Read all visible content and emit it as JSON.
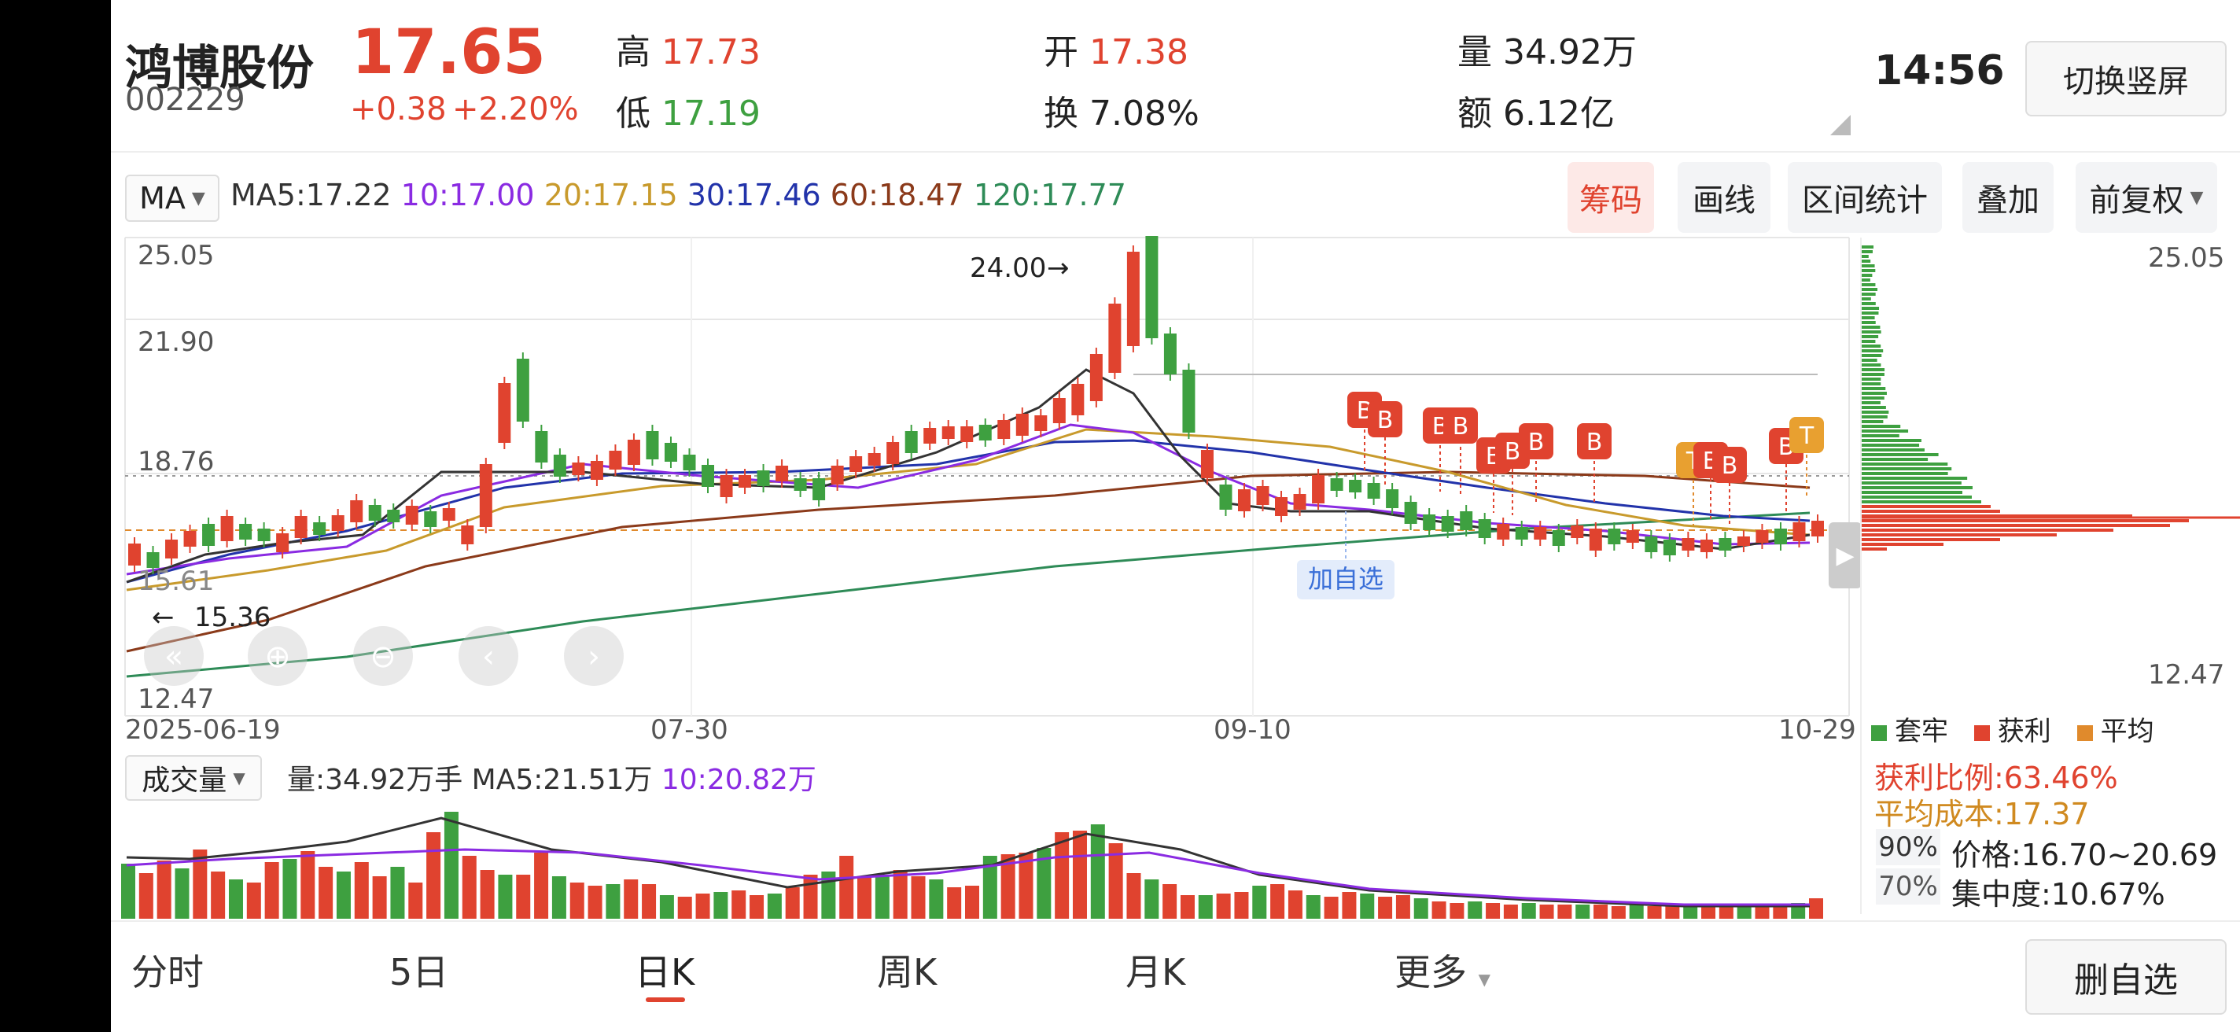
{
  "stock": {
    "name": "鸿博股份",
    "code": "002229",
    "price": "17.65",
    "change": "+0.38",
    "change_pct": "+2.20%",
    "high_label": "高",
    "high": "17.73",
    "low_label": "低",
    "low": "17.19",
    "open_label": "开",
    "open": "17.38",
    "turnover_label": "换",
    "turnover": "7.08%",
    "volume_label": "量",
    "volume": "34.92万",
    "amount_label": "额",
    "amount": "6.12亿",
    "time": "14:56"
  },
  "header": {
    "switch_button": "切换竖屏"
  },
  "ma_bar": {
    "selector": "MA",
    "ma5": "MA5:17.22",
    "ma10": "10:17.00",
    "ma20": "20:17.15",
    "ma30": "30:17.46",
    "ma60": "60:18.47",
    "ma120": "120:17.77"
  },
  "tools": {
    "chips": "筹码",
    "draw": "画线",
    "range_stats": "区间统计",
    "overlay": "叠加",
    "adjust": "前复权"
  },
  "price_axis": {
    "top": "25.05",
    "mid1": "21.90",
    "mid2": "18.76",
    "bottom": "12.47",
    "partial": "15.61"
  },
  "annotations": {
    "high_marker": "24.00",
    "low_marker": "15.36",
    "add_watchlist": "加自选"
  },
  "date_axis": [
    "2025-06-19",
    "07-30",
    "09-10",
    "10-29"
  ],
  "chip_panel": {
    "top": "25.05",
    "bottom": "12.47",
    "legend_trapped": "套牢",
    "legend_profit": "获利",
    "legend_avg": "平均",
    "profit_ratio": "获利比例:63.46%",
    "avg_cost": "平均成本:17.37",
    "pct90": "90%",
    "price_range": "价格:16.70~20.69",
    "pct70": "70%",
    "concentration": "集中度:10.67%"
  },
  "volume_bar": {
    "selector": "成交量",
    "text": "量:34.92万手 MA5:21.51万",
    "ma10": "10:20.82万"
  },
  "signals": {
    "buy": "B",
    "take": "T"
  },
  "bottom_nav": {
    "tabs": [
      "分时",
      "5日",
      "日K",
      "周K",
      "月K",
      "更多"
    ],
    "active": "日K",
    "remove_watchlist": "删自选"
  },
  "colors": {
    "up": "#e0432f",
    "down": "#3ea040",
    "ma5": "#333333",
    "ma10": "#8a2be2",
    "ma20": "#c89a2c",
    "ma30": "#2233aa",
    "ma60": "#8b3a1a",
    "ma120": "#2e8b57"
  }
}
